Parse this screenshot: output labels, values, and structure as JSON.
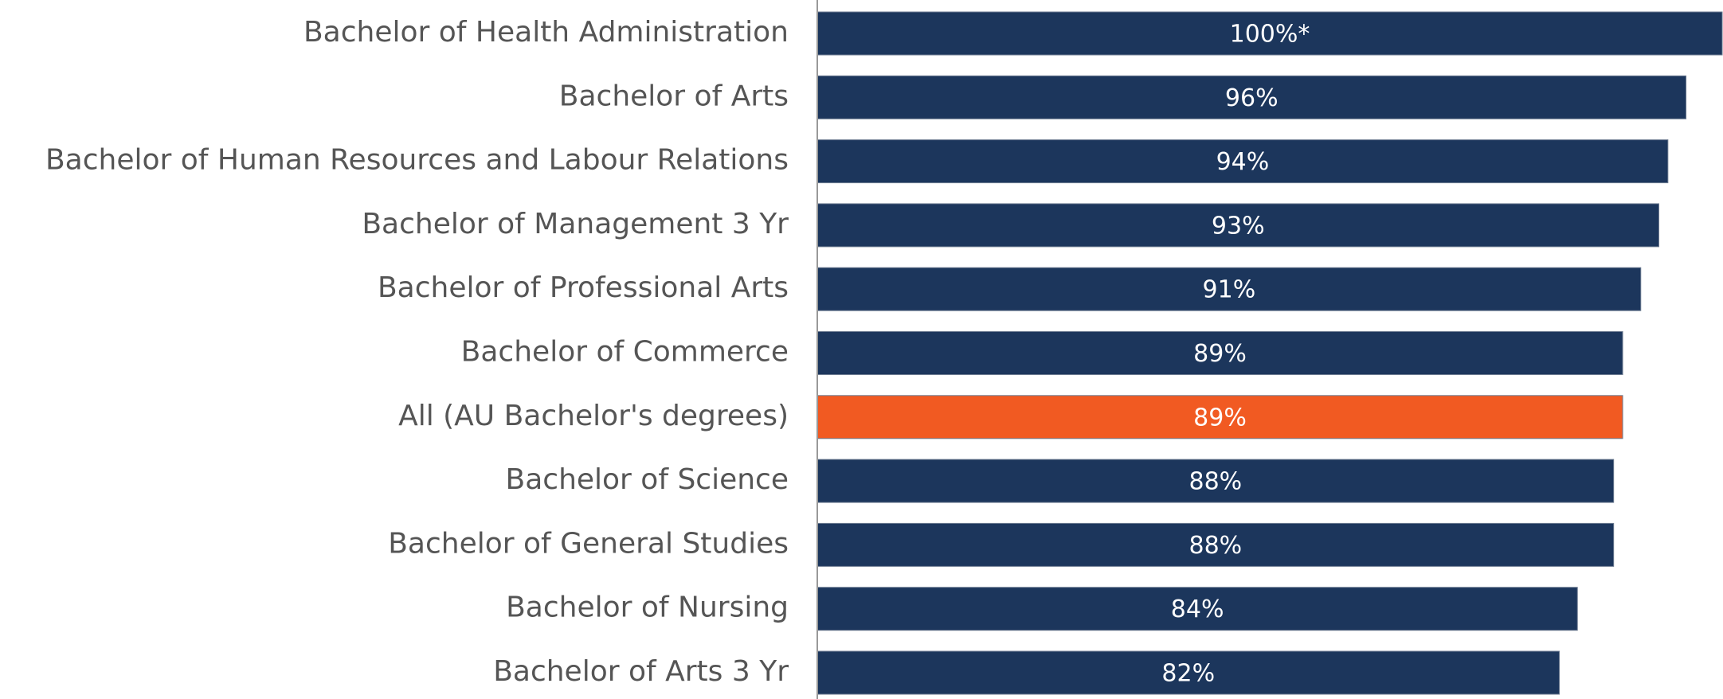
{
  "chart_data": {
    "type": "barh",
    "categories": [
      "Bachelor of Health Administration",
      "Bachelor of Arts",
      "Bachelor of Human Resources and Labour Relations",
      "Bachelor of Management 3 Yr",
      "Bachelor of Professional Arts",
      "Bachelor of Commerce",
      "All (AU Bachelor's degrees)",
      "Bachelor of Science",
      "Bachelor of General Studies",
      "Bachelor of Nursing",
      "Bachelor of Arts 3 Yr"
    ],
    "values": [
      100,
      96,
      94,
      93,
      91,
      89,
      89,
      88,
      88,
      84,
      82
    ],
    "value_labels": [
      "100%*",
      "96%",
      "94%",
      "93%",
      "91%",
      "89%",
      "89%",
      "88%",
      "88%",
      "84%",
      "82%"
    ],
    "colors": [
      "#1c365c",
      "#1c365c",
      "#1c365c",
      "#1c365c",
      "#1c365c",
      "#1c365c",
      "#f15a22",
      "#1c365c",
      "#1c365c",
      "#1c365c",
      "#1c365c"
    ],
    "xlim": [
      0,
      100
    ]
  }
}
